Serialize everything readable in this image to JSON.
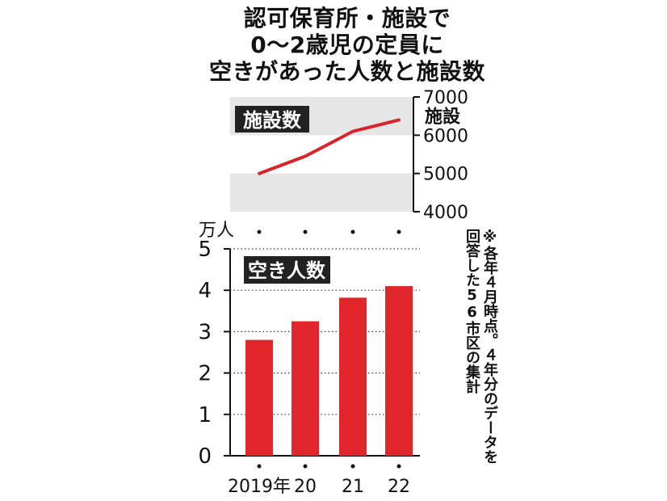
{
  "title_lines": [
    "認可保育所・施設で",
    "0〜2歳児の定員に",
    "空きがあった人数と施設数"
  ],
  "colors": {
    "line": "#d9232a",
    "bar": "#e0262b",
    "band": "#e6e6e6",
    "label_bg": "#222222"
  },
  "chart_data": [
    {
      "type": "line",
      "title": "施設数",
      "ylabel": "施設",
      "x": [
        "2019年",
        "20",
        "21",
        "22"
      ],
      "values": [
        5000,
        5450,
        6100,
        6400
      ],
      "ylim": [
        4000,
        7000
      ],
      "yticks": [
        "7000",
        "6000",
        "5000",
        "4000"
      ],
      "ytick_values": [
        7000,
        6000,
        5000,
        4000
      ],
      "axis_position": "right"
    },
    {
      "type": "bar",
      "title": "空き人数",
      "ylabel": "万人",
      "categories": [
        "2019年",
        "20",
        "21",
        "22"
      ],
      "values": [
        2.8,
        3.25,
        3.82,
        4.1
      ],
      "ylim": [
        0,
        5
      ],
      "yticks": [
        "5",
        "4",
        "3",
        "2",
        "1",
        "0"
      ],
      "ytick_values": [
        5,
        4,
        3,
        2,
        1,
        0
      ],
      "grid": "dotted"
    }
  ],
  "note_lines": [
    "※各年４月時点。４年分のデータを",
    "回答した56市区の集計"
  ]
}
